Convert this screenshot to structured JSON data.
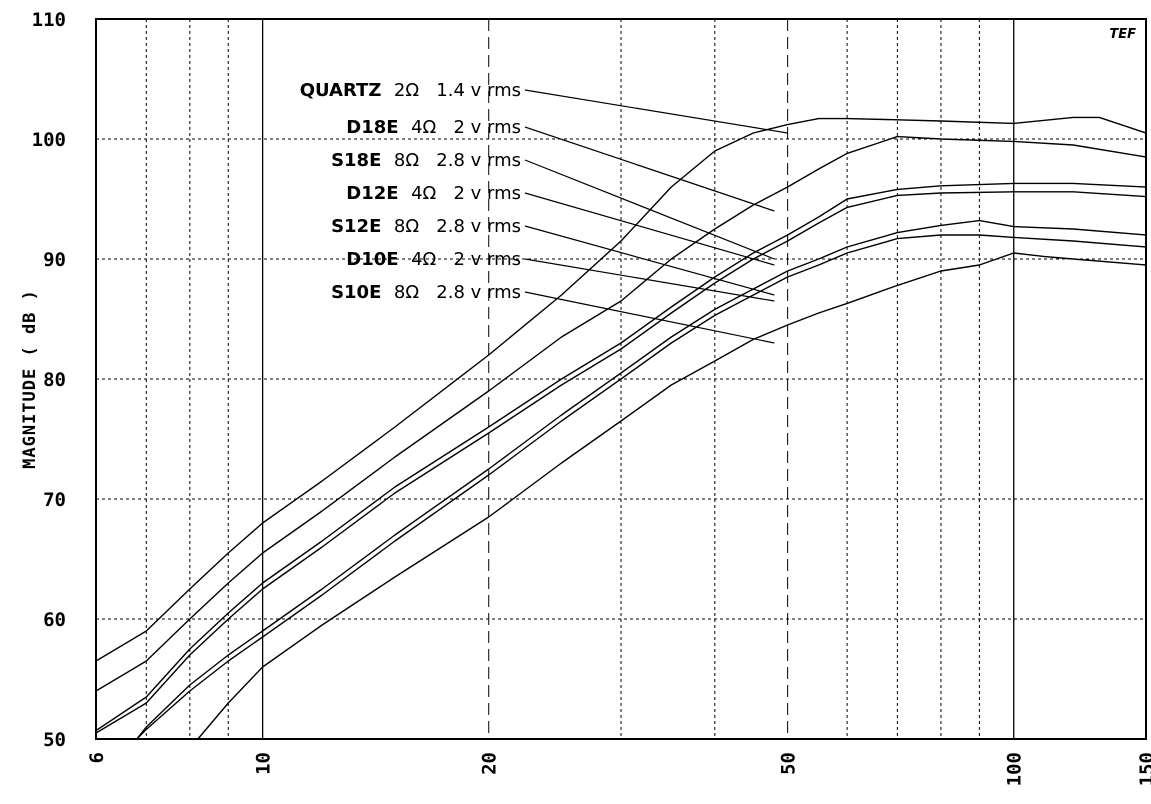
{
  "chart_data": {
    "type": "line",
    "xscale": "log",
    "xlim": [
      6,
      150
    ],
    "ylim": [
      50,
      110
    ],
    "ylabel": "MAGNITUDE ( dB )",
    "xlabel": "",
    "logo": "TEF",
    "yticks": [
      50,
      60,
      70,
      80,
      90,
      100,
      110
    ],
    "xticks": [
      6,
      10,
      20,
      50,
      100,
      150
    ],
    "grid": {
      "solid_x": [
        10,
        100
      ],
      "dashed_x": [
        20,
        50
      ],
      "dotted_x": [
        7,
        8,
        9,
        30,
        40,
        60,
        70,
        80,
        90
      ],
      "dotted_y": [
        60,
        70,
        80,
        90,
        100
      ]
    },
    "series": [
      {
        "name": "QUARTZ",
        "impedance": "2Ω",
        "drive": "1.4 v rms",
        "x": [
          6,
          7,
          8,
          9,
          10,
          12,
          15,
          20,
          25,
          30,
          35,
          40,
          45,
          50,
          55,
          60,
          70,
          80,
          100,
          120,
          130,
          150
        ],
        "y": [
          56.5,
          59,
          62.5,
          65.5,
          68,
          71.5,
          76,
          82,
          87,
          91.5,
          96,
          99,
          100.5,
          101.2,
          101.7,
          101.7,
          101.6,
          101.5,
          101.3,
          101.8,
          101.8,
          100.5
        ]
      },
      {
        "name": "D18E",
        "impedance": "4Ω",
        "drive": "2 v rms",
        "x": [
          6,
          7,
          8,
          9,
          10,
          12,
          15,
          20,
          25,
          30,
          35,
          40,
          45,
          50,
          55,
          60,
          70,
          80,
          100,
          120,
          150
        ],
        "y": [
          54,
          56.5,
          60,
          63,
          65.5,
          69,
          73.5,
          79,
          83.5,
          86.5,
          90,
          92.5,
          94.5,
          96,
          97.5,
          98.8,
          100.2,
          100,
          99.8,
          99.5,
          98.5
        ]
      },
      {
        "name": "S18E",
        "impedance": "8Ω",
        "drive": "2.8 v rms",
        "x": [
          6,
          7,
          8,
          9,
          10,
          12,
          15,
          20,
          25,
          30,
          35,
          40,
          45,
          50,
          55,
          60,
          70,
          80,
          100,
          120,
          150
        ],
        "y": [
          50.7,
          53.5,
          57.5,
          60.5,
          63,
          66.5,
          71,
          76,
          80,
          83,
          86,
          88.5,
          90.5,
          92,
          93.5,
          95,
          95.8,
          96.1,
          96.3,
          96.3,
          96
        ]
      },
      {
        "name": "D12E",
        "impedance": "4Ω",
        "drive": "2 v rms",
        "x": [
          6,
          7,
          8,
          9,
          10,
          12,
          15,
          20,
          25,
          30,
          35,
          40,
          45,
          50,
          55,
          60,
          70,
          80,
          100,
          120,
          150
        ],
        "y": [
          50.5,
          53,
          57,
          60,
          62.5,
          66,
          70.5,
          75.5,
          79.5,
          82.5,
          85.5,
          88,
          90,
          91.5,
          93,
          94.3,
          95.3,
          95.5,
          95.6,
          95.6,
          95.2
        ]
      },
      {
        "name": "S12E",
        "impedance": "8Ω",
        "drive": "2.8 v rms",
        "x": [
          6.8,
          7,
          8,
          9,
          10,
          12,
          15,
          20,
          25,
          30,
          35,
          40,
          45,
          50,
          55,
          60,
          70,
          80,
          90,
          100,
          120,
          150
        ],
        "y": [
          50,
          51,
          54.5,
          57,
          59,
          62.5,
          67,
          72.5,
          77,
          80.5,
          83.5,
          85.8,
          87.5,
          89,
          90,
          91,
          92.2,
          92.8,
          93.2,
          92.7,
          92.5,
          92
        ]
      },
      {
        "name": "D10E",
        "impedance": "4Ω",
        "drive": "2 v rms",
        "x": [
          6.8,
          7,
          8,
          9,
          10,
          12,
          15,
          20,
          25,
          30,
          35,
          40,
          45,
          50,
          55,
          60,
          70,
          80,
          90,
          100,
          120,
          150
        ],
        "y": [
          50,
          50.8,
          54,
          56.5,
          58.5,
          62,
          66.5,
          72,
          76.5,
          80,
          83,
          85.3,
          87,
          88.5,
          89.5,
          90.5,
          91.7,
          92,
          92,
          91.8,
          91.5,
          91
        ]
      },
      {
        "name": "S10E",
        "impedance": "8Ω",
        "drive": "2.8 v rms",
        "x": [
          8.2,
          9,
          10,
          12,
          15,
          20,
          25,
          30,
          35,
          40,
          45,
          50,
          55,
          60,
          70,
          80,
          90,
          100,
          110,
          120,
          150
        ],
        "y": [
          50,
          53,
          56,
          59.5,
          63.5,
          68.5,
          73,
          76.5,
          79.5,
          81.5,
          83.3,
          84.5,
          85.5,
          86.3,
          87.8,
          89,
          89.5,
          90.5,
          90.2,
          90,
          89.5
        ]
      }
    ]
  }
}
